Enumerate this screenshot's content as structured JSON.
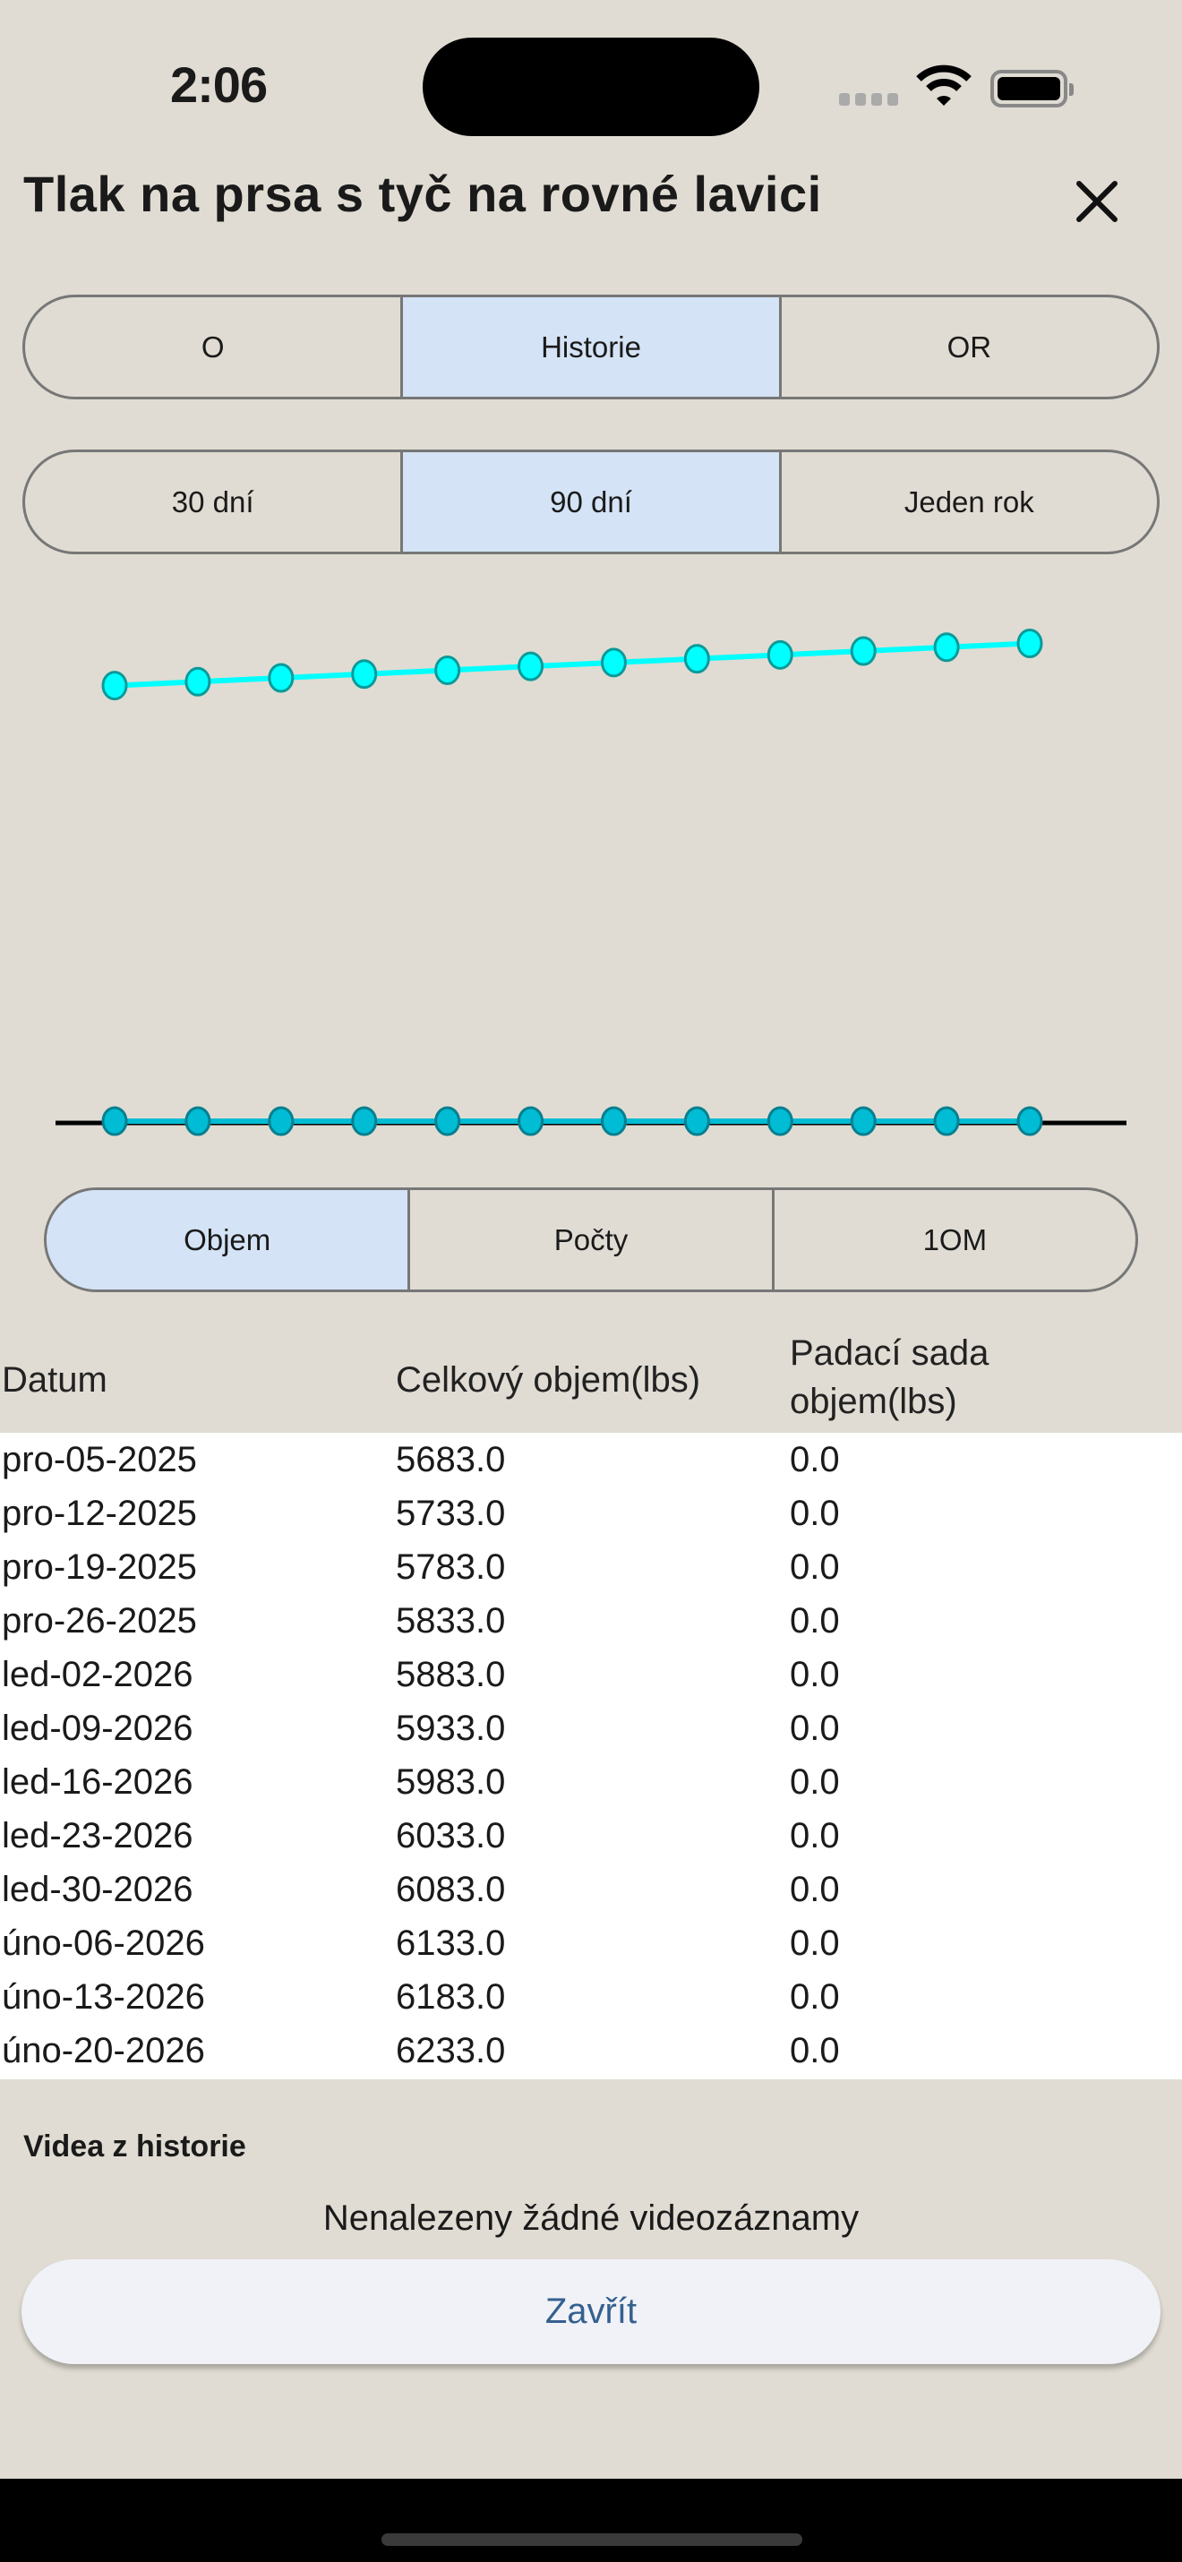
{
  "status_bar": {
    "time": "2:06",
    "icons": [
      "cellular-icon",
      "wifi-icon",
      "battery-icon"
    ]
  },
  "header": {
    "title": "Tlak na prsa s tyč na rovné lavici",
    "close_icon": "close-icon"
  },
  "tabs_main": {
    "items": [
      "O",
      "Historie",
      "OR"
    ],
    "selected": 1
  },
  "tabs_range": {
    "items": [
      "30 dní",
      "90 dní",
      "Jeden rok"
    ],
    "selected": 1
  },
  "tabs_metric": {
    "items": [
      "Objem",
      "Počty",
      "1OM"
    ],
    "selected": 0
  },
  "chart_data": {
    "type": "line",
    "x": [
      "pro-05-2025",
      "pro-12-2025",
      "pro-19-2025",
      "pro-26-2025",
      "led-02-2026",
      "led-09-2026",
      "led-16-2026",
      "led-23-2026",
      "led-30-2026",
      "úno-06-2026",
      "úno-13-2026",
      "úno-20-2026"
    ],
    "series": [
      {
        "values": [
          5683,
          5733,
          5783,
          5833,
          5883,
          5933,
          5983,
          6033,
          6083,
          6133,
          6183,
          6233
        ],
        "color": "#00ffff"
      },
      {
        "values": [
          0,
          0,
          0,
          0,
          0,
          0,
          0,
          0,
          0,
          0,
          0,
          0
        ],
        "color": "#00bcd4"
      }
    ],
    "ylim": [
      0,
      7150
    ],
    "grid": false
  },
  "table": {
    "headers": [
      "Datum",
      "Celkový objem(lbs)",
      "Padací sada",
      "objem(lbs)"
    ],
    "rows": [
      [
        "pro-05-2025",
        "5683.0",
        "0.0"
      ],
      [
        "pro-12-2025",
        "5733.0",
        "0.0"
      ],
      [
        "pro-19-2025",
        "5783.0",
        "0.0"
      ],
      [
        "pro-26-2025",
        "5833.0",
        "0.0"
      ],
      [
        "led-02-2026",
        "5883.0",
        "0.0"
      ],
      [
        "led-09-2026",
        "5933.0",
        "0.0"
      ],
      [
        "led-16-2026",
        "5983.0",
        "0.0"
      ],
      [
        "led-23-2026",
        "6033.0",
        "0.0"
      ],
      [
        "led-30-2026",
        "6083.0",
        "0.0"
      ],
      [
        "úno-06-2026",
        "6133.0",
        "0.0"
      ],
      [
        "úno-13-2026",
        "6183.0",
        "0.0"
      ],
      [
        "úno-20-2026",
        "6233.0",
        "0.0"
      ]
    ]
  },
  "videos": {
    "title": "Videa z historie",
    "empty": "Nenalezeny žádné videozáznamy"
  },
  "close_button": "Zavřít",
  "colors": {
    "background": "#e0dcd3",
    "selected_segment": "#d4e3f5",
    "button_text": "#34608f"
  }
}
